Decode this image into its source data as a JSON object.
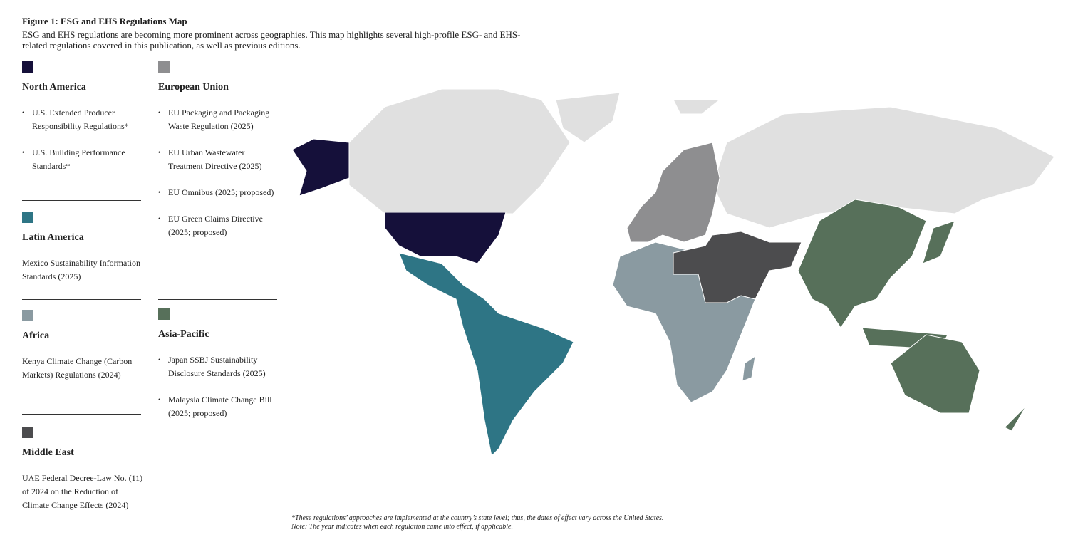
{
  "figure": {
    "title": "Figure 1: ESG and EHS Regulations Map",
    "description": "ESG and EHS regulations are becoming more prominent across geographies. This map highlights several high-profile ESG- and EHS-related regulations covered in this publication, as well as previous editions.",
    "regions": [
      {
        "name": "North America",
        "color": "#15103a",
        "bullets": true,
        "items": [
          "U.S. Extended Producer Responsibility Regulations*",
          "U.S. Building Performance Standards*"
        ]
      },
      {
        "name": "Latin America",
        "color": "#2e7585",
        "bullets": false,
        "items": [
          "Mexico Sustainability Information Standards (2025)"
        ]
      },
      {
        "name": "Africa",
        "color": "#8a9aa1",
        "bullets": false,
        "items": [
          "Kenya Climate Change (Carbon Markets) Regulations (2024)"
        ]
      },
      {
        "name": "Middle East",
        "color": "#4c4c4e",
        "bullets": false,
        "items": [
          "UAE Federal Decree-Law No. (11) of 2024 on the Reduction of Climate Change Effects (2024)"
        ]
      },
      {
        "name": "European Union",
        "color": "#8e8e90",
        "bullets": true,
        "items": [
          "EU Packaging and Packaging Waste Regulation (2025)",
          "EU Urban Wastewater Treatment Directive (2025)",
          "EU Omnibus (2025; proposed)",
          "EU Green Claims Directive (2025; proposed)"
        ]
      },
      {
        "name": "Asia-Pacific",
        "color": "#57705a",
        "bullets": true,
        "items": [
          "Japan SSBJ Sustainability Disclosure Standards (2025)",
          "Malaysia Climate Change Bill (2025; proposed)"
        ]
      }
    ],
    "footnotes": [
      "*These regulations’ approaches are implemented at the country’s state level; thus, the dates of effect vary across the United States.",
      "Note: The year indicates when each regulation came into effect, if applicable."
    ]
  }
}
